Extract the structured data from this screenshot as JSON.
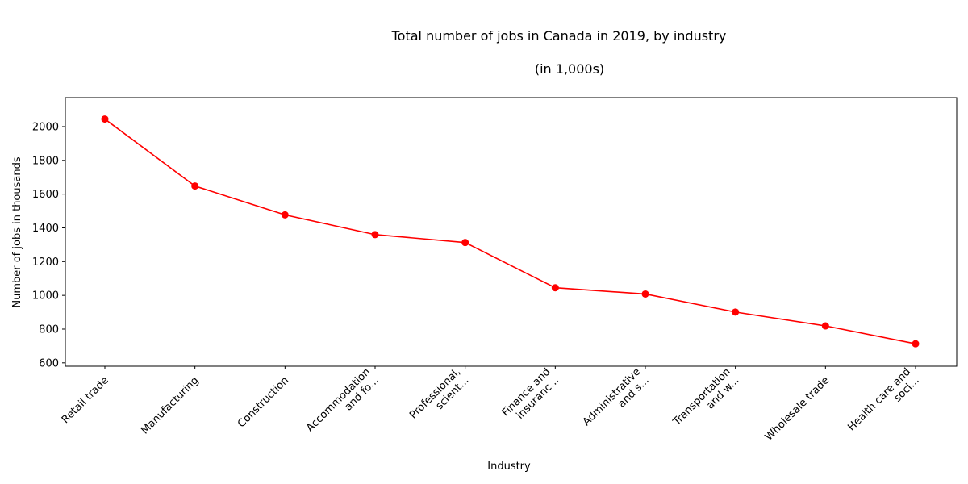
{
  "chart_data": {
    "type": "line",
    "title": "Total number of jobs in Canada in 2019, by industry",
    "subtitle": "(in 1,000s)",
    "xlabel": "Industry",
    "ylabel": "Number of jobs in thousands",
    "categories": [
      [
        "Retail trade"
      ],
      [
        "Manufacturing"
      ],
      [
        "Construction"
      ],
      [
        "Accommodation",
        "and fo..."
      ],
      [
        "Professional,",
        "scient..."
      ],
      [
        "Finance and",
        "insuranc..."
      ],
      [
        "Administrative",
        "and s..."
      ],
      [
        "Transportation",
        "and w..."
      ],
      [
        "Wholesale trade"
      ],
      [
        "Health care and",
        "soci..."
      ]
    ],
    "series": [
      {
        "color": "#ff0000",
        "values": [
          2045,
          1648,
          1477,
          1360,
          1313,
          1045,
          1008,
          901,
          819,
          713
        ]
      }
    ],
    "ylim": [
      580,
      2172
    ],
    "yticks": [
      600,
      800,
      1000,
      1200,
      1400,
      1600,
      1800,
      2000
    ],
    "grid": false,
    "legend": "none"
  }
}
